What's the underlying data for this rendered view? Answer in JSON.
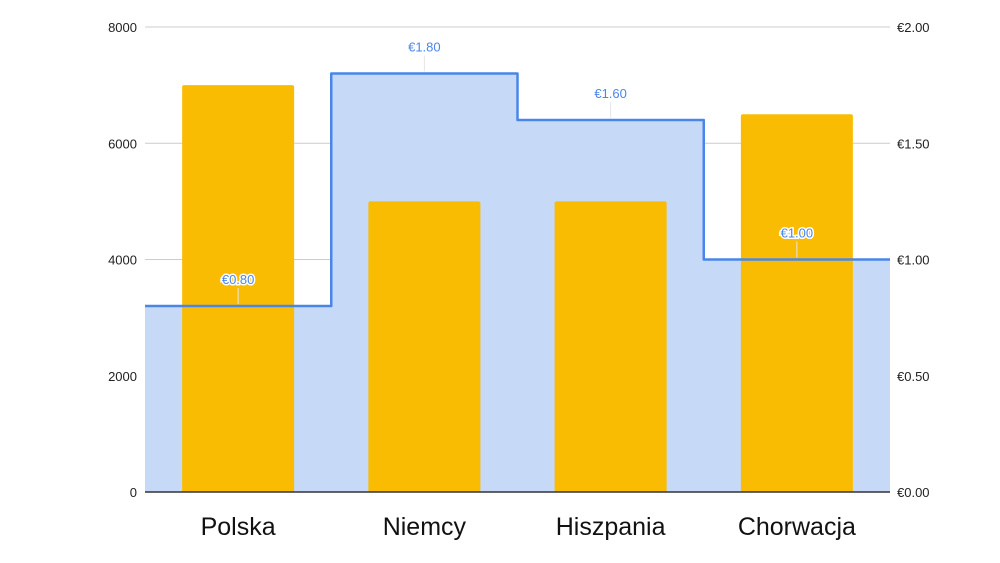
{
  "chart_data": {
    "type": "bar",
    "categories": [
      "Polska",
      "Niemcy",
      "Hiszpania",
      "Chorwacja"
    ],
    "bar_series": {
      "values": [
        7000,
        5000,
        5000,
        6500
      ],
      "color": "#f9bc02"
    },
    "stepped_area_series": {
      "values": [
        0.8,
        1.8,
        1.6,
        1.0
      ],
      "data_labels": [
        "€0.80",
        "€1.80",
        "€1.60",
        "€1.00"
      ],
      "fill_color": "#c6d9f7",
      "line_color": "#4a86e8"
    },
    "left_axis": {
      "min": 0,
      "max": 8000,
      "ticks": [
        0,
        2000,
        4000,
        6000,
        8000
      ],
      "tick_labels": [
        "0",
        "2000",
        "4000",
        "6000",
        "8000"
      ]
    },
    "right_axis": {
      "min": 0,
      "max": 2,
      "ticks": [
        0,
        0.5,
        1,
        1.5,
        2
      ],
      "tick_labels": [
        "€0.00",
        "€0.50",
        "€1.00",
        "€1.50",
        "€2.00"
      ]
    },
    "grid": true,
    "gridline_color": "#cccccc",
    "baseline_color": "#333333"
  }
}
